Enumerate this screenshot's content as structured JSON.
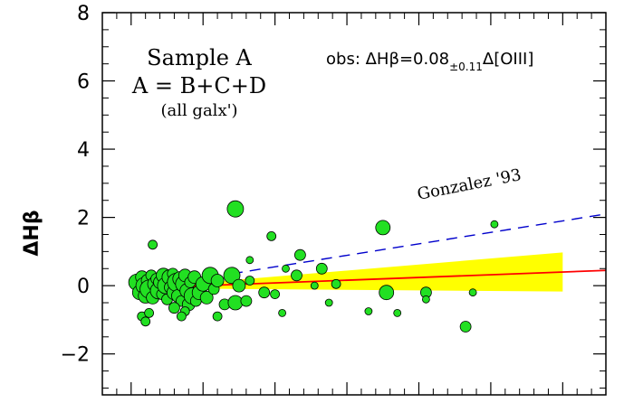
{
  "chart_data": {
    "type": "scatter",
    "title": "",
    "xlabel": "",
    "ylabel": "ΔHβ",
    "ylim": [
      -3.2,
      8
    ],
    "xlim": [
      -0.4,
      6.6
    ],
    "yticks": [
      -2,
      0,
      2,
      4,
      6,
      8
    ],
    "ytick_labels": [
      "−2",
      "0",
      "2",
      "4",
      "6",
      "8"
    ],
    "xticks_major": [
      0,
      1,
      2,
      3,
      4,
      5,
      6
    ],
    "grid": false,
    "annotations": {
      "sample_title": "Sample A",
      "sample_formula": "A = B+C+D",
      "sample_note": "(all galx')",
      "obs_prefix": "obs: ΔHβ=0.08",
      "obs_sub": "±0.11",
      "obs_suffix": "Δ[OIII]",
      "reference_label": "Gonzalez '93"
    },
    "colors": {
      "points": "#22e022",
      "fit_line": "#ff0000",
      "uncertainty_band": "#ffff00",
      "reference_line": "#0000cc"
    },
    "fit_line": {
      "slope": 0.08,
      "intercept": -0.08,
      "x_range": [
        0.2,
        6.6
      ]
    },
    "band": {
      "slope_err": 0.11,
      "x_range": [
        0.2,
        6.0
      ]
    },
    "reference_line": {
      "points": [
        [
          1.4,
          0.35
        ],
        [
          6.6,
          2.1
        ]
      ]
    },
    "series": [
      {
        "points": [
          [
            0.08,
            0.1,
            9
          ],
          [
            0.12,
            -0.2,
            8
          ],
          [
            0.15,
            0.25,
            7
          ],
          [
            0.18,
            0.0,
            9
          ],
          [
            0.2,
            -0.3,
            8
          ],
          [
            0.23,
            0.15,
            7
          ],
          [
            0.25,
            -0.1,
            10
          ],
          [
            0.28,
            0.3,
            6
          ],
          [
            0.3,
            -0.35,
            7
          ],
          [
            0.33,
            0.05,
            8
          ],
          [
            0.35,
            0.2,
            6
          ],
          [
            0.38,
            -0.15,
            9
          ],
          [
            0.4,
            0.1,
            7
          ],
          [
            0.43,
            -0.25,
            6
          ],
          [
            0.45,
            0.3,
            8
          ],
          [
            0.48,
            0.0,
            9
          ],
          [
            0.5,
            -0.4,
            6
          ],
          [
            0.53,
            0.25,
            8
          ],
          [
            0.55,
            -0.05,
            7
          ],
          [
            0.58,
            0.35,
            6
          ],
          [
            0.6,
            -0.2,
            8
          ],
          [
            0.63,
            0.1,
            10
          ],
          [
            0.65,
            -0.3,
            7
          ],
          [
            0.68,
            0.2,
            8
          ],
          [
            0.7,
            -0.45,
            6
          ],
          [
            0.73,
            0.05,
            9
          ],
          [
            0.75,
            0.3,
            7
          ],
          [
            0.78,
            -0.15,
            8
          ],
          [
            0.8,
            -0.55,
            7
          ],
          [
            0.82,
            0.1,
            6
          ],
          [
            0.85,
            -0.3,
            9
          ],
          [
            0.88,
            0.25,
            7
          ],
          [
            0.9,
            -0.45,
            6
          ],
          [
            0.95,
            -0.2,
            8
          ],
          [
            1.0,
            0.05,
            8
          ],
          [
            1.05,
            -0.35,
            7
          ],
          [
            1.1,
            0.3,
            9
          ],
          [
            1.15,
            -0.1,
            6
          ],
          [
            1.2,
            0.15,
            7
          ],
          [
            1.3,
            -0.55,
            6
          ],
          [
            1.4,
            0.3,
            9
          ],
          [
            1.45,
            -0.5,
            8
          ],
          [
            1.5,
            0.0,
            7
          ],
          [
            1.6,
            -0.45,
            6
          ],
          [
            1.65,
            0.15,
            5
          ],
          [
            0.15,
            -0.9,
            5
          ],
          [
            0.25,
            -0.8,
            5
          ],
          [
            0.3,
            1.2,
            5
          ],
          [
            0.6,
            -0.65,
            6
          ],
          [
            0.75,
            -0.75,
            5
          ],
          [
            1.2,
            -0.9,
            5
          ],
          [
            0.7,
            -0.9,
            5
          ],
          [
            0.2,
            -1.05,
            5
          ],
          [
            1.45,
            2.25,
            9
          ],
          [
            1.65,
            0.75,
            4
          ],
          [
            1.85,
            -0.2,
            6
          ],
          [
            1.95,
            1.45,
            5
          ],
          [
            2.0,
            -0.25,
            5
          ],
          [
            2.1,
            -0.8,
            4
          ],
          [
            2.15,
            0.5,
            4
          ],
          [
            2.3,
            0.3,
            6
          ],
          [
            2.35,
            0.9,
            6
          ],
          [
            2.55,
            0.0,
            4
          ],
          [
            2.65,
            0.5,
            6
          ],
          [
            2.75,
            -0.5,
            4
          ],
          [
            2.85,
            0.05,
            5
          ],
          [
            3.3,
            -0.75,
            4
          ],
          [
            3.5,
            1.7,
            8
          ],
          [
            3.55,
            -0.2,
            8
          ],
          [
            3.7,
            -0.8,
            4
          ],
          [
            4.1,
            -0.2,
            6
          ],
          [
            4.1,
            -0.4,
            4
          ],
          [
            4.65,
            -1.2,
            6
          ],
          [
            4.75,
            -0.2,
            4
          ],
          [
            5.05,
            1.8,
            4
          ]
        ]
      }
    ]
  }
}
